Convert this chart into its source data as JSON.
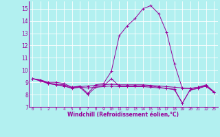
{
  "xlabel": "Windchill (Refroidissement éolien,°C)",
  "bg_color": "#b2f0f0",
  "line_color": "#990099",
  "grid_color": "#ffffff",
  "xlim": [
    -0.5,
    23.5
  ],
  "ylim": [
    7,
    15.6
  ],
  "yticks": [
    7,
    8,
    9,
    10,
    11,
    12,
    13,
    14,
    15
  ],
  "xticks": [
    0,
    1,
    2,
    3,
    4,
    5,
    6,
    7,
    8,
    9,
    10,
    11,
    12,
    13,
    14,
    15,
    16,
    17,
    18,
    19,
    20,
    21,
    22,
    23
  ],
  "series": [
    [
      9.3,
      9.2,
      9.0,
      9.0,
      8.9,
      8.6,
      8.7,
      8.1,
      8.8,
      8.9,
      9.9,
      12.8,
      13.6,
      14.2,
      15.0,
      15.25,
      14.6,
      13.1,
      10.5,
      8.5,
      8.5,
      8.6,
      8.7,
      8.2
    ],
    [
      9.3,
      9.15,
      8.95,
      8.85,
      8.8,
      8.6,
      8.65,
      8.7,
      8.75,
      8.8,
      8.85,
      8.8,
      8.8,
      8.8,
      8.8,
      8.75,
      8.7,
      8.65,
      8.6,
      8.55,
      8.5,
      8.6,
      8.8,
      8.25
    ],
    [
      9.3,
      9.1,
      8.9,
      8.8,
      8.7,
      8.55,
      8.6,
      8.55,
      8.6,
      8.65,
      8.7,
      8.65,
      8.65,
      8.65,
      8.65,
      8.6,
      8.55,
      8.5,
      8.45,
      7.3,
      8.4,
      8.5,
      8.7,
      8.2
    ],
    [
      9.3,
      9.2,
      8.9,
      8.8,
      8.7,
      8.5,
      8.6,
      8.0,
      8.6,
      8.7,
      9.3,
      8.7,
      8.7,
      8.7,
      8.7,
      8.7,
      8.6,
      8.5,
      8.4,
      7.3,
      8.4,
      8.5,
      8.7,
      8.2
    ]
  ]
}
